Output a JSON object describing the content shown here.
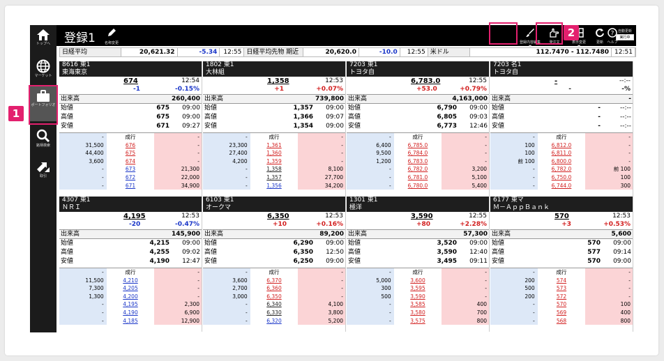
{
  "sidebar": {
    "items": [
      {
        "label": "トップへ",
        "icon": "home-icon"
      },
      {
        "label": "マーケット",
        "icon": "globe-icon"
      },
      {
        "label": "ポートフォリオ",
        "icon": "briefcase-icon"
      },
      {
        "label": "銘柄検索",
        "icon": "search-icon"
      },
      {
        "label": "取引",
        "icon": "trade-icon"
      }
    ]
  },
  "header": {
    "title": "登録1",
    "rename_label": "名称変更",
    "edit_label": "登録内容編集",
    "order_label": "発注文",
    "display_label": "表示変更",
    "refresh_label": "更新",
    "help_label": "ヘルプ",
    "auto_label": "自動更新",
    "auto_state": "実行中"
  },
  "annotations": {
    "one": "1",
    "two": "2",
    "accent": "#e3206e"
  },
  "indices": [
    {
      "name": "日経平均",
      "value": "20,621.32",
      "change": "-5.34",
      "time": "12:55"
    },
    {
      "name": "日経平均先物 期近",
      "value": "20,620.0",
      "change": "-10.0",
      "time": "12:55"
    },
    {
      "name": "米ドル",
      "value": "112.7470 - 112.7480",
      "time": "12:51"
    }
  ],
  "labels": {
    "volume": "出来高",
    "open": "始値",
    "high": "高値",
    "low": "安値",
    "market": "成行"
  },
  "panels": [
    {
      "code": "8616 東1",
      "name": "東海東京",
      "price": "674",
      "time": "12:54",
      "change": "-1",
      "pct": "-0.15%",
      "dir": "neg",
      "volume": "260,400",
      "open": "675",
      "open_t": "09:00",
      "high": "675",
      "high_t": "09:00",
      "low": "671",
      "low_t": "09:27",
      "book": [
        [
          "31,500",
          "676",
          "-"
        ],
        [
          "44,400",
          "675",
          "-"
        ],
        [
          "3,600",
          "674",
          "-"
        ],
        [
          "-",
          "673",
          "21,300"
        ],
        [
          "-",
          "672",
          "22,000"
        ],
        [
          "-",
          "671",
          "34,900"
        ]
      ],
      "top_sell": "-",
      "top_buy": "-"
    },
    {
      "code": "1802 東1",
      "name": "大林組",
      "price": "1,358",
      "time": "12:53",
      "change": "+1",
      "pct": "+0.07%",
      "dir": "pos",
      "volume": "739,800",
      "open": "1,357",
      "open_t": "09:00",
      "high": "1,366",
      "high_t": "09:07",
      "low": "1,354",
      "low_t": "09:00",
      "book": [
        [
          "23,300",
          "1,361",
          "-"
        ],
        [
          "27,400",
          "1,360",
          "-"
        ],
        [
          "4,200",
          "1,359",
          "-"
        ],
        [
          "-",
          "1,358",
          "8,100"
        ],
        [
          "-",
          "1,357",
          "27,700"
        ],
        [
          "-",
          "1,356",
          "34,200"
        ]
      ],
      "top_sell": "-",
      "top_buy": "-"
    },
    {
      "code": "7203 東1",
      "name": "トヨタ自",
      "price": "6,783.0",
      "time": "12:55",
      "change": "+53.0",
      "pct": "+0.79%",
      "dir": "pos",
      "volume": "4,163,000",
      "open": "6,790",
      "open_t": "09:00",
      "high": "6,805",
      "high_t": "09:03",
      "low": "6,773",
      "low_t": "12:46",
      "book": [
        [
          "6,400",
          "6,785.0",
          "-"
        ],
        [
          "9,500",
          "6,784.0",
          "-"
        ],
        [
          "1,200",
          "6,783.0",
          "-"
        ],
        [
          "-",
          "6,782.0",
          "3,200"
        ],
        [
          "-",
          "6,781.0",
          "5,100"
        ],
        [
          "-",
          "6,780.0",
          "5,400"
        ]
      ],
      "top_sell": "-",
      "top_buy": "-"
    },
    {
      "code": "7203 名1",
      "name": "トヨタ自",
      "price": "-",
      "time": "--:--",
      "change": "-",
      "pct": "-%",
      "dir": "eq",
      "volume": "-",
      "open": "-",
      "open_t": "--:--",
      "high": "-",
      "high_t": "--:--",
      "low": "-",
      "low_t": "--:--",
      "book": [
        [
          "100",
          "6,812.0",
          "-"
        ],
        [
          "100",
          "6,811.0",
          "-"
        ],
        [
          "前 100",
          "6,800.0",
          "-"
        ],
        [
          "-",
          "6,782.0",
          "前 100"
        ],
        [
          "-",
          "6,750.0",
          "100"
        ],
        [
          "-",
          "6,744.0",
          "300"
        ]
      ],
      "top_sell": "-",
      "top_buy": "-"
    },
    {
      "code": "4307 東1",
      "name": "ＮＲＩ",
      "price": "4,195",
      "time": "12:53",
      "change": "-20",
      "pct": "-0.47%",
      "dir": "neg",
      "volume": "145,900",
      "open": "4,215",
      "open_t": "09:00",
      "high": "4,255",
      "high_t": "09:02",
      "low": "4,190",
      "low_t": "12:47",
      "book": [
        [
          "11,500",
          "4,210",
          "-"
        ],
        [
          "7,300",
          "4,205",
          "-"
        ],
        [
          "1,300",
          "4,200",
          "-"
        ],
        [
          "-",
          "4,195",
          "2,300"
        ],
        [
          "-",
          "4,190",
          "6,900"
        ],
        [
          "-",
          "4,185",
          "12,900"
        ]
      ],
      "top_sell": "-",
      "top_buy": "-"
    },
    {
      "code": "6103 東1",
      "name": "オークマ",
      "price": "6,350",
      "time": "12:53",
      "change": "+10",
      "pct": "+0.16%",
      "dir": "pos",
      "volume": "89,200",
      "open": "6,290",
      "open_t": "09:00",
      "high": "6,350",
      "high_t": "12:50",
      "low": "6,250",
      "low_t": "09:00",
      "book": [
        [
          "3,600",
          "6,370",
          "-"
        ],
        [
          "2,700",
          "6,360",
          "-"
        ],
        [
          "3,000",
          "6,350",
          "-"
        ],
        [
          "-",
          "6,340",
          "4,100"
        ],
        [
          "-",
          "6,330",
          "3,800"
        ],
        [
          "-",
          "6,320",
          "5,200"
        ]
      ],
      "top_sell": "-",
      "top_buy": "-"
    },
    {
      "code": "1301 東1",
      "name": "極洋",
      "price": "3,590",
      "time": "12:55",
      "change": "+80",
      "pct": "+2.28%",
      "dir": "pos",
      "volume": "57,300",
      "open": "3,520",
      "open_t": "09:00",
      "high": "3,590",
      "high_t": "12:40",
      "low": "3,495",
      "low_t": "09:11",
      "book": [
        [
          "5,000",
          "3,600",
          "-"
        ],
        [
          "300",
          "3,595",
          "-"
        ],
        [
          "500",
          "3,590",
          "-"
        ],
        [
          "-",
          "3,585",
          "400"
        ],
        [
          "-",
          "3,580",
          "700"
        ],
        [
          "-",
          "3,575",
          "800"
        ]
      ],
      "top_sell": "-",
      "top_buy": "-"
    },
    {
      "code": "6177 東マ",
      "name": "Ｍ－ＡｐｐＢａｎｋ",
      "price": "570",
      "time": "12:53",
      "change": "+3",
      "pct": "+0.53%",
      "dir": "pos",
      "volume": "5,600",
      "open": "570",
      "open_t": "09:00",
      "high": "577",
      "high_t": "09:14",
      "low": "570",
      "low_t": "09:00",
      "book": [
        [
          "200",
          "574",
          "-"
        ],
        [
          "500",
          "573",
          "-"
        ],
        [
          "200",
          "572",
          "-"
        ],
        [
          "-",
          "570",
          "100"
        ],
        [
          "-",
          "569",
          "400"
        ],
        [
          "-",
          "568",
          "800"
        ]
      ],
      "top_sell": "-",
      "top_buy": "-"
    }
  ],
  "book_colors": {
    "0": [
      "up",
      "up",
      "up",
      "dn",
      "dn",
      "dn"
    ],
    "1": [
      "up",
      "up",
      "up",
      "eq",
      "eq",
      "dn"
    ],
    "2": [
      "up",
      "up",
      "up",
      "up",
      "up",
      "up"
    ],
    "3": [
      "up",
      "up",
      "up",
      "up",
      "up",
      "up"
    ],
    "4": [
      "dn",
      "dn",
      "dn",
      "dn",
      "dn",
      "dn"
    ],
    "5": [
      "up",
      "up",
      "up",
      "eq",
      "eq",
      "dn"
    ],
    "6": [
      "up",
      "up",
      "up",
      "up",
      "up",
      "up"
    ],
    "7": [
      "up",
      "up",
      "up",
      "up",
      "up",
      "up"
    ]
  }
}
